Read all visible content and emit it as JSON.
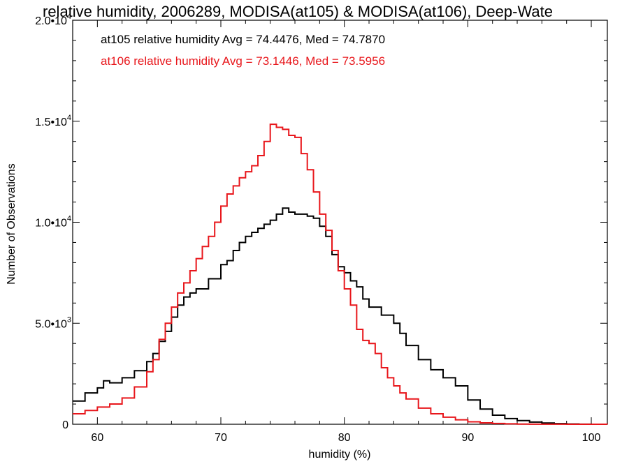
{
  "chart_data": {
    "type": "line",
    "step": true,
    "title": "relative humidity, 2006289, MODISA(at105) & MODISA(at106), Deep-Wate",
    "xlabel": "humidity (%)",
    "ylabel": "Number of Observations",
    "xlim": [
      58,
      101.3
    ],
    "ylim": [
      0,
      20000
    ],
    "x_ticks": [
      {
        "value": 60,
        "label": "60"
      },
      {
        "value": 70,
        "label": "70"
      },
      {
        "value": 80,
        "label": "80"
      },
      {
        "value": 90,
        "label": "90"
      },
      {
        "value": 100,
        "label": "100"
      }
    ],
    "y_ticks": [
      {
        "value": 0,
        "mant": "0",
        "exp": ""
      },
      {
        "value": 5000,
        "mant": "5.0•10",
        "exp": "3"
      },
      {
        "value": 10000,
        "mant": "1.0•10",
        "exp": "4"
      },
      {
        "value": 15000,
        "mant": "1.5•10",
        "exp": "4"
      },
      {
        "value": 20000,
        "mant": "2.0•10",
        "exp": "4"
      }
    ],
    "grid": false,
    "series": [
      {
        "name": "at105",
        "color": "#000000",
        "stats_label": "at105 relative humidity Avg = 74.4476, Med = 74.7870",
        "x": [
          58,
          59,
          60,
          60.5,
          61,
          62,
          63,
          64,
          64.5,
          65,
          65.5,
          66,
          66.5,
          67,
          67.5,
          68,
          69,
          70,
          70.5,
          71,
          71.5,
          72,
          72.5,
          73,
          73.5,
          74,
          74.5,
          75,
          75.5,
          76,
          76.5,
          77,
          77.5,
          78,
          78.5,
          79,
          79.5,
          80,
          80.5,
          81,
          81.5,
          82,
          83,
          84,
          84.5,
          85,
          86,
          87,
          88,
          89,
          90,
          91,
          92,
          93,
          94,
          95,
          96,
          97,
          98,
          99,
          100,
          101.3
        ],
        "y": [
          1150,
          1550,
          1800,
          2150,
          2050,
          2300,
          2650,
          3100,
          3500,
          4100,
          4600,
          5300,
          5900,
          6300,
          6500,
          6700,
          7200,
          7900,
          8100,
          8600,
          9000,
          9300,
          9500,
          9700,
          9900,
          10100,
          10400,
          10700,
          10500,
          10400,
          10400,
          10300,
          10200,
          9800,
          9300,
          8400,
          7800,
          7500,
          7100,
          6800,
          6200,
          5800,
          5400,
          5000,
          4500,
          3900,
          3200,
          2700,
          2300,
          1900,
          1200,
          750,
          450,
          280,
          180,
          110,
          60,
          30,
          15,
          5,
          2,
          0
        ]
      },
      {
        "name": "at106",
        "color": "#e8161b",
        "stats_label": "at106 relative humidity Avg = 73.1446, Med = 73.5956",
        "x": [
          58,
          59,
          60,
          61,
          62,
          63,
          64,
          64.5,
          65,
          65.5,
          66,
          66.5,
          67,
          67.5,
          68,
          68.5,
          69,
          69.5,
          70,
          70.5,
          71,
          71.5,
          72,
          72.5,
          73,
          73.5,
          74,
          74.5,
          75,
          75.5,
          76,
          76.5,
          77,
          77.5,
          78,
          78.5,
          79,
          79.5,
          80,
          80.5,
          81,
          81.5,
          82,
          82.5,
          83,
          83.5,
          84,
          84.5,
          85,
          86,
          87,
          88,
          89,
          90,
          91,
          92,
          93,
          94,
          95,
          96,
          98,
          101.3
        ],
        "y": [
          520,
          680,
          850,
          1000,
          1300,
          1850,
          2600,
          3200,
          4200,
          5000,
          5800,
          6500,
          7000,
          7600,
          8200,
          8800,
          9300,
          10000,
          10800,
          11400,
          11800,
          12200,
          12500,
          12800,
          13300,
          14000,
          14850,
          14700,
          14600,
          14300,
          14200,
          13400,
          12600,
          11500,
          10400,
          9600,
          8600,
          7600,
          6700,
          5900,
          4700,
          4150,
          4000,
          3500,
          2800,
          2300,
          1900,
          1550,
          1250,
          800,
          520,
          350,
          220,
          120,
          70,
          40,
          20,
          10,
          5,
          3,
          1,
          0
        ]
      }
    ]
  }
}
